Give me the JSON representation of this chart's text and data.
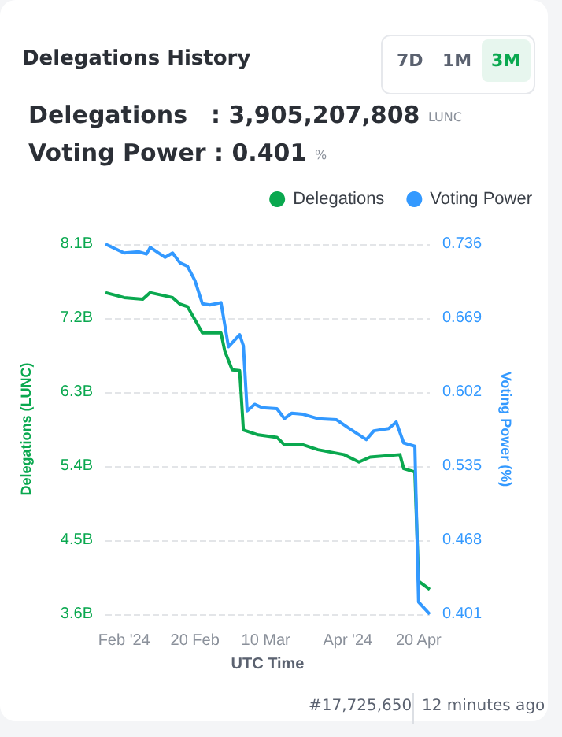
{
  "chart_data": {
    "type": "line",
    "title": "Delegations History",
    "annotations": [
      "7D",
      "1M",
      "3M",
      "Delegations : 3,905,207,808",
      "LUNC",
      "Voting Power : 0.401",
      "%",
      "#17,725,650",
      "12 minutes ago"
    ],
    "xlabel": "UTC Time",
    "ylabel": "Delegations (LUNC)",
    "y2label": "Voting Power (%)",
    "xlim": [
      "2024-01-27",
      "2024-04-23"
    ],
    "xticks": [
      {
        "value": "2024-02-01",
        "label": "Feb '24"
      },
      {
        "value": "2024-02-20",
        "label": "20 Feb"
      },
      {
        "value": "2024-03-10",
        "label": "10 Mar"
      },
      {
        "value": "2024-04-01",
        "label": "Apr '24"
      },
      {
        "value": "2024-04-20",
        "label": "20 Apr"
      }
    ],
    "ylim": [
      3.6,
      8.1
    ],
    "yticks": [
      {
        "value": 3.6,
        "label": "3.6B"
      },
      {
        "value": 4.5,
        "label": "4.5B"
      },
      {
        "value": 5.4,
        "label": "5.4B"
      },
      {
        "value": 6.3,
        "label": "6.3B"
      },
      {
        "value": 7.2,
        "label": "7.2B"
      },
      {
        "value": 8.1,
        "label": "8.1B"
      }
    ],
    "y2lim": [
      0.401,
      0.736
    ],
    "y2ticks": [
      0.401,
      0.468,
      0.535,
      0.602,
      0.669,
      0.736
    ],
    "series": [
      {
        "name": "Delegations",
        "color": "#0aa84f",
        "x": [
          "2024-01-27",
          "2024-02-01",
          "2024-02-06",
          "2024-02-08",
          "2024-02-14",
          "2024-02-16",
          "2024-02-18",
          "2024-02-22",
          "2024-02-27",
          "2024-02-28",
          "2024-03-01",
          "2024-03-03",
          "2024-03-04",
          "2024-03-08",
          "2024-03-13",
          "2024-03-15",
          "2024-03-20",
          "2024-03-24",
          "2024-03-31",
          "2024-04-04",
          "2024-04-07",
          "2024-04-15",
          "2024-04-16",
          "2024-04-19",
          "2024-04-20",
          "2024-04-23"
        ],
        "values": [
          7.51,
          7.45,
          7.43,
          7.51,
          7.45,
          7.37,
          7.34,
          7.02,
          7.02,
          6.8,
          6.57,
          6.56,
          5.84,
          5.78,
          5.75,
          5.66,
          5.66,
          5.6,
          5.54,
          5.45,
          5.51,
          5.54,
          5.37,
          5.33,
          4.0,
          3.9
        ]
      },
      {
        "name": "Voting Power",
        "color": "#3399ff",
        "axis": "y2",
        "x": [
          "2024-01-27",
          "2024-02-01",
          "2024-02-05",
          "2024-02-07",
          "2024-02-08",
          "2024-02-12",
          "2024-02-14",
          "2024-02-16",
          "2024-02-18",
          "2024-02-20",
          "2024-02-22",
          "2024-02-24",
          "2024-02-27",
          "2024-02-29",
          "2024-03-03",
          "2024-03-04",
          "2024-03-05",
          "2024-03-07",
          "2024-03-09",
          "2024-03-13",
          "2024-03-15",
          "2024-03-17",
          "2024-03-20",
          "2024-03-24",
          "2024-03-29",
          "2024-04-01",
          "2024-04-06",
          "2024-04-08",
          "2024-04-12",
          "2024-04-14",
          "2024-04-16",
          "2024-04-19",
          "2024-04-20",
          "2024-04-23"
        ],
        "values": [
          0.736,
          0.728,
          0.729,
          0.727,
          0.733,
          0.724,
          0.728,
          0.719,
          0.716,
          0.703,
          0.682,
          0.681,
          0.683,
          0.643,
          0.654,
          0.644,
          0.585,
          0.591,
          0.588,
          0.587,
          0.578,
          0.583,
          0.582,
          0.578,
          0.577,
          0.57,
          0.559,
          0.567,
          0.569,
          0.575,
          0.556,
          0.553,
          0.412,
          0.401
        ]
      }
    ],
    "legend": "top right",
    "grid": "y",
    "marker": "none",
    "line_style": "solid"
  }
}
